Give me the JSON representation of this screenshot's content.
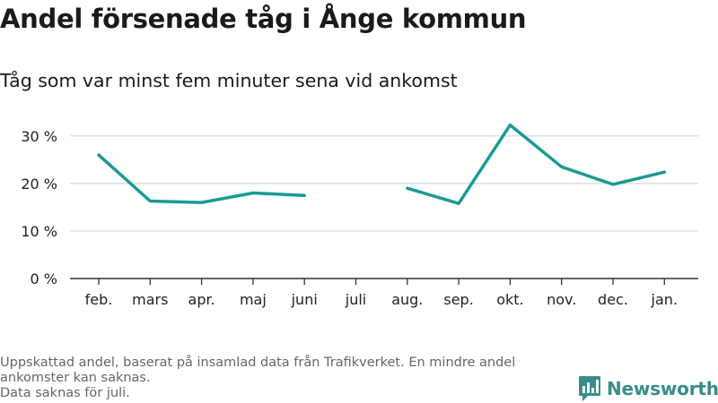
{
  "header": {
    "title": "Andel försenade tåg i Ånge kommun",
    "subtitle": "Tåg som var minst fem minuter sena vid ankomst"
  },
  "footer": {
    "note_line1": "Uppskattad andel, baserat på insamlad data från Trafikverket. En mindre andel ankomster kan saknas.",
    "note_line2": "Data saknas för juli.",
    "brand": "Newsworthy",
    "brand_icon": "bar-chart-logo-icon",
    "brand_color": "#3a8c8c"
  },
  "chart_data": {
    "type": "line",
    "title": "Andel försenade tåg i Ånge kommun",
    "subtitle": "Tåg som var minst fem minuter sena vid ankomst",
    "categories": [
      "feb.",
      "mars",
      "apr.",
      "maj",
      "juni",
      "juli",
      "aug.",
      "sep.",
      "okt.",
      "nov.",
      "dec.",
      "jan."
    ],
    "series": [
      {
        "values": [
          26,
          16.3,
          16,
          18,
          17.5,
          null,
          19,
          15.8,
          32.3,
          23.5,
          19.8,
          22.4
        ],
        "color": "#1a9a93"
      }
    ],
    "yticks": [
      0,
      10,
      20,
      30
    ],
    "ytick_labels": [
      "0 %",
      "10 %",
      "20 %",
      "30 %"
    ],
    "ylim": [
      0,
      36
    ],
    "grid": true,
    "legend": "none"
  }
}
